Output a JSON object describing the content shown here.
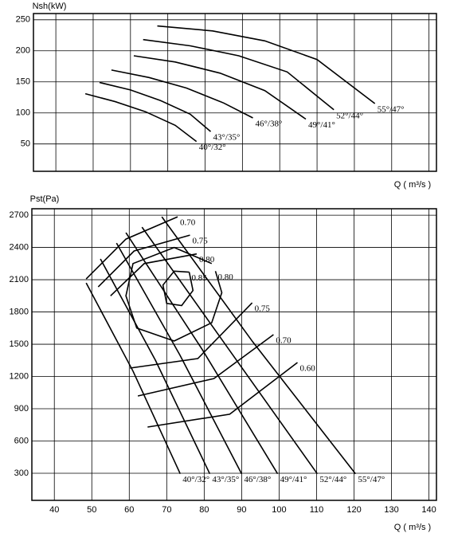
{
  "chart_data": [
    {
      "type": "line",
      "title": "Nsh(kW)",
      "x_label": "Q ( m³/s )",
      "grid": true,
      "color": "#000000",
      "xlim": [
        34,
        142
      ],
      "ylim": [
        6,
        260
      ],
      "xticks": [
        40,
        50,
        60,
        70,
        80,
        90,
        100,
        110,
        120,
        130,
        140
      ],
      "yticks": [
        50,
        100,
        150,
        200,
        250
      ],
      "series": [
        {
          "name": "40°/32°",
          "x": [
            47.9,
            56,
            64,
            72,
            77.7
          ],
          "values": [
            131,
            118,
            102,
            80,
            54
          ]
        },
        {
          "name": "43°/35°",
          "x": [
            51.7,
            60,
            68,
            76,
            81.5
          ],
          "values": [
            149,
            137,
            120,
            98,
            70
          ]
        },
        {
          "name": "46°/38°",
          "x": [
            54.9,
            65,
            75,
            85,
            92.8
          ],
          "values": [
            169,
            157,
            140,
            116,
            92
          ]
        },
        {
          "name": "49°/41°",
          "x": [
            60.9,
            72,
            84,
            96,
            107
          ],
          "values": [
            192,
            182,
            164,
            136,
            90
          ]
        },
        {
          "name": "52°/44°",
          "x": [
            63.4,
            76,
            89,
            102,
            114.5
          ],
          "values": [
            218,
            208,
            192,
            166,
            105
          ]
        },
        {
          "name": "55°/47°",
          "x": [
            67.2,
            82,
            96,
            110,
            125.5
          ],
          "values": [
            240,
            232,
            216,
            186,
            115
          ]
        }
      ]
    },
    {
      "type": "line",
      "title": "Pst(Pa)",
      "x_label": "Q ( m³/s )",
      "grid": true,
      "color": "#000000",
      "xlim": [
        34,
        142
      ],
      "ylim": [
        48,
        2760
      ],
      "xticks": [
        40,
        50,
        60,
        70,
        80,
        90,
        100,
        110,
        120,
        130,
        140
      ],
      "yticks": [
        300,
        600,
        900,
        1200,
        1500,
        1800,
        2100,
        2400,
        2700
      ],
      "series": [
        {
          "name": "40°/32°",
          "x": [
            48.5,
            61,
            73.6
          ],
          "values": [
            2070,
            1250,
            295
          ]
        },
        {
          "name": "43°/35°",
          "x": [
            52.3,
            67,
            81.5
          ],
          "values": [
            2293,
            1350,
            295
          ]
        },
        {
          "name": "46°/38°",
          "x": [
            56.6,
            73.5,
            90
          ],
          "values": [
            2441,
            1400,
            295
          ]
        },
        {
          "name": "49°/41°",
          "x": [
            59.1,
            79.5,
            99.6
          ],
          "values": [
            2537,
            1450,
            295
          ]
        },
        {
          "name": "52°/44°",
          "x": [
            63.4,
            86,
            110.2
          ],
          "values": [
            2589,
            1480,
            295
          ]
        },
        {
          "name": "55°/47°",
          "x": [
            68.7,
            93,
            120.4
          ],
          "values": [
            2685,
            1520,
            295
          ]
        },
        {
          "name": "0.70",
          "x": [
            48.5,
            59.1,
            72.9
          ],
          "values": [
            2107,
            2478,
            2685
          ]
        },
        {
          "name": "0.75",
          "x": [
            51.7,
            61.3,
            76.2
          ],
          "values": [
            2033,
            2367,
            2515
          ]
        },
        {
          "name": "0.80",
          "x": [
            55,
            64,
            78
          ],
          "values": [
            1950,
            2250,
            2340
          ]
        },
        {
          "name": "0.80",
          "x": [
            82,
            72,
            61,
            59.1,
            62,
            72,
            82,
            84.7,
            83
          ],
          "values": [
            2250,
            2400,
            2250,
            1950,
            1650,
            1530,
            1700,
            1980,
            2180
          ]
        },
        {
          "name": "0.85",
          "x": [
            76,
            72,
            69,
            70,
            74,
            77,
            76
          ],
          "values": [
            2170,
            2180,
            2050,
            1880,
            1860,
            2000,
            2170
          ]
        },
        {
          "name": "0.75",
          "x": [
            60.2,
            78.3,
            92.8
          ],
          "values": [
            1278,
            1367,
            1885
          ]
        },
        {
          "name": "0.70",
          "x": [
            62.3,
            82.6,
            98.5
          ],
          "values": [
            1019,
            1181,
            1589
          ]
        },
        {
          "name": "0.60",
          "x": [
            64.9,
            86.8,
            104.9
          ],
          "values": [
            730,
            849,
            1330
          ]
        }
      ]
    }
  ]
}
